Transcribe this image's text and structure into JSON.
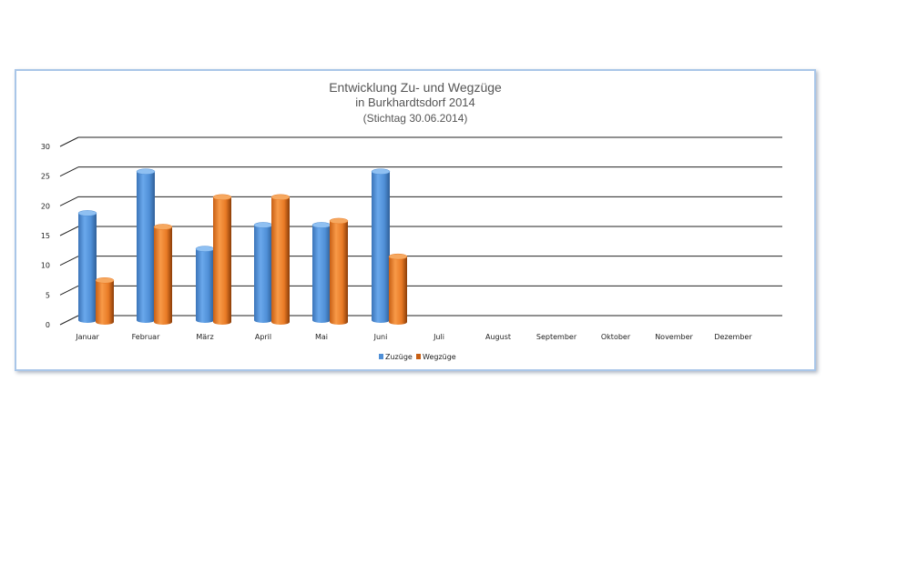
{
  "table": {
    "months": [
      "Januar",
      "Februar",
      "März",
      "April",
      "Mai",
      "Juni",
      "Juli",
      "August",
      "September",
      "Oktober",
      "November",
      "Dezember"
    ],
    "rows": [
      {
        "label": "Zuzüge",
        "values": [
          "18",
          "25",
          "12",
          "16",
          "16",
          "25",
          "",
          "",
          "",
          "",
          "",
          ""
        ]
      },
      {
        "label": "Wegzüge",
        "values": [
          "7",
          "16",
          "21",
          "21",
          "17",
          "11",
          "",
          "",
          "",
          "",
          "",
          ""
        ]
      }
    ]
  },
  "chart_data": {
    "type": "bar",
    "style": "3d-cylinder-clustered",
    "title": [
      "Entwicklung Zu- und Wegzüge",
      "in Burkhardtsdorf 2014",
      "(Stichtag 30.06.2014)"
    ],
    "categories": [
      "Januar",
      "Februar",
      "März",
      "April",
      "Mai",
      "Juni",
      "Juli",
      "August",
      "September",
      "Oktober",
      "November",
      "Dezember"
    ],
    "series": [
      {
        "name": "Zuzüge",
        "color": "#4f8fd6",
        "values": [
          18,
          25,
          12,
          16,
          16,
          25,
          null,
          null,
          null,
          null,
          null,
          null
        ]
      },
      {
        "name": "Wegzüge",
        "color": "#e87a25",
        "values": [
          7,
          16,
          21,
          21,
          17,
          11,
          null,
          null,
          null,
          null,
          null,
          null
        ]
      }
    ],
    "yticks": [
      "0",
      "5",
      "10",
      "15",
      "20",
      "25",
      "30"
    ],
    "ylim": [
      0,
      30
    ],
    "grid": true,
    "legend": "bottom",
    "xlabel": "",
    "ylabel": ""
  }
}
